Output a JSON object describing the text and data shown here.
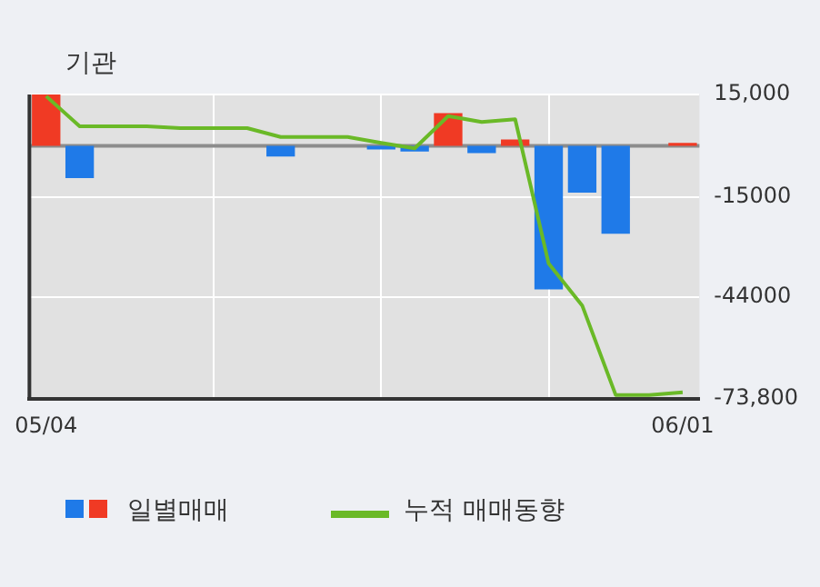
{
  "chart_data": {
    "type": "bar",
    "title": "기관",
    "categories": [
      "05/04",
      null,
      null,
      null,
      null,
      null,
      null,
      null,
      null,
      null,
      null,
      null,
      null,
      null,
      null,
      null,
      null,
      null,
      null,
      "06/01"
    ],
    "series": [
      {
        "name": "일별매매",
        "color": "#1f7ae8",
        "colors": [
          "#f03a24",
          "#1f7ae8",
          "#1f7ae8",
          "#1f7ae8",
          "#1f7ae8",
          "#1f7ae8",
          "#1f7ae8",
          "#1f7ae8",
          "#1f7ae8",
          "#1f7ae8",
          "#1f7ae8",
          "#1f7ae8",
          "#f03a24",
          "#1f7ae8",
          "#f03a24",
          "#1f7ae8",
          "#1f7ae8",
          "#1f7ae8",
          "#1f7ae8",
          "#f03a24"
        ],
        "values": [
          15000,
          -9400,
          null,
          null,
          null,
          null,
          null,
          -3100,
          null,
          null,
          -1000,
          -1600,
          9600,
          -2100,
          1900,
          -41800,
          -13600,
          -25600,
          null,
          900
        ]
      },
      {
        "name": "누적 매매동향",
        "type": "line",
        "color": "#6ab927",
        "values": [
          14500,
          5700,
          5700,
          5700,
          5200,
          5200,
          5200,
          2600,
          2600,
          2600,
          900,
          -700,
          8700,
          7000,
          7800,
          -34300,
          -46500,
          -72600,
          -72600,
          -71800
        ]
      }
    ],
    "ylim": [
      -73800,
      15000
    ],
    "yticks": [
      {
        "value": 15000,
        "label": "15,000"
      },
      -15000,
      -44000,
      {
        "value": -73800,
        "label": "-73,800"
      }
    ],
    "ref_lines": [
      {
        "axis": "y",
        "value": 0,
        "color": "#8c8c8c"
      }
    ],
    "grid": true,
    "legend": "bottom",
    "marker": "none",
    "line_style": "solid"
  }
}
